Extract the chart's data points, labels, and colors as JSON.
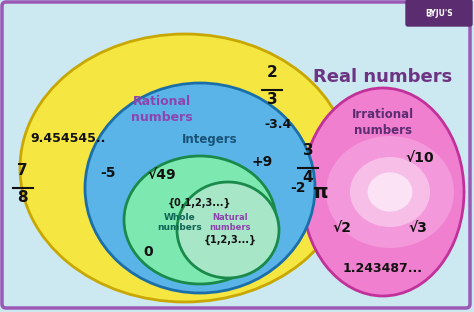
{
  "bg_color": "#cce8f0",
  "border_color": "#9b59b6",
  "title_real": "Real numbers",
  "title_rational": "Rational\nnumbers",
  "title_integers": "Integers",
  "title_whole": "Whole\nnumbers",
  "title_natural": "Natural\nnumbers",
  "title_irrational": "Irrational\nnumbers",
  "color_rational": "#f5e642",
  "color_integers": "#5ab4e8",
  "color_whole": "#7de8b0",
  "color_natural_fill": "#a8e6c8",
  "color_irrational": "#f07fd0",
  "color_irrational_inner": "#f9c8ed",
  "color_irrational_glow": "#fef0fb",
  "font_color_rational": "#8e44ad",
  "font_color_integers": "#1a5276",
  "font_color_whole": "#0e6655",
  "font_color_natural": "#8e44ad",
  "font_color_dark": "#111111",
  "font_color_real": "#6c3483",
  "border_yellow": "#c8a800",
  "border_blue": "#1a6fa8",
  "border_green": "#1a8a4a",
  "border_pink": "#c0329a"
}
